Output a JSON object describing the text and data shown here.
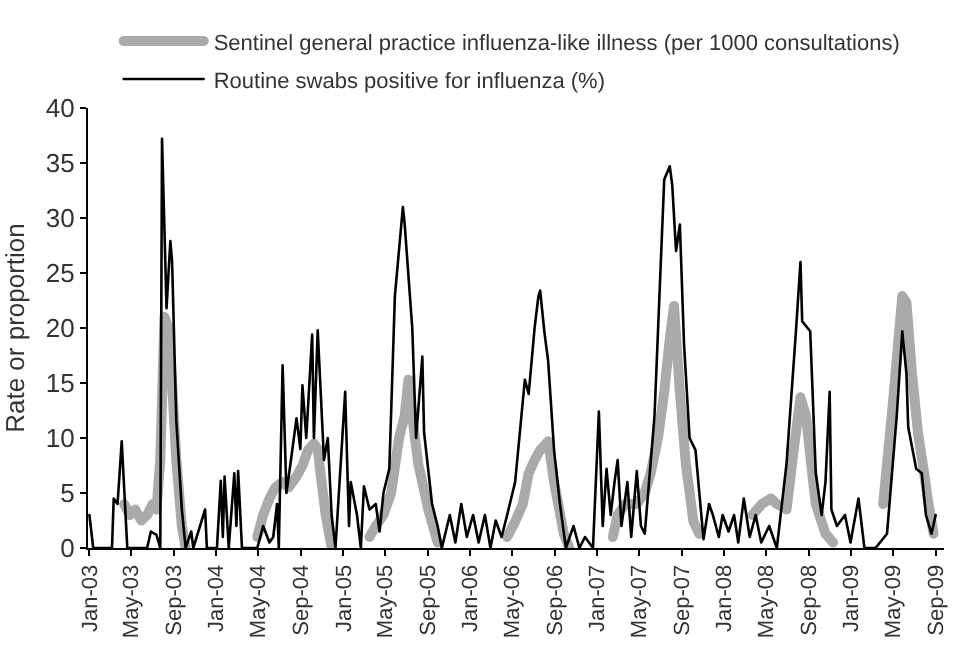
{
  "chart_data": {
    "type": "line",
    "ylabel": "Rate or proportion",
    "legend": "top left",
    "grid": false,
    "marker": "none",
    "line_style": "solid",
    "xlim": [
      "2002-12-28",
      "2009-09-25"
    ],
    "xticks": [
      {
        "value": "2003-01-01",
        "label": "Jan-03"
      },
      {
        "value": "2003-05-01",
        "label": "May-03"
      },
      {
        "value": "2003-09-01",
        "label": "Sep-03"
      },
      {
        "value": "2004-01-01",
        "label": "Jan-04"
      },
      {
        "value": "2004-05-01",
        "label": "May-04"
      },
      {
        "value": "2004-09-01",
        "label": "Sep-04"
      },
      {
        "value": "2005-01-01",
        "label": "Jan-05"
      },
      {
        "value": "2005-05-01",
        "label": "May-05"
      },
      {
        "value": "2005-09-01",
        "label": "Sep-05"
      },
      {
        "value": "2006-01-01",
        "label": "Jan-06"
      },
      {
        "value": "2006-05-01",
        "label": "May-06"
      },
      {
        "value": "2006-09-01",
        "label": "Sep-06"
      },
      {
        "value": "2007-01-01",
        "label": "Jan-07"
      },
      {
        "value": "2007-05-01",
        "label": "May-07"
      },
      {
        "value": "2007-09-01",
        "label": "Sep-07"
      },
      {
        "value": "2008-01-01",
        "label": "Jan-08"
      },
      {
        "value": "2008-05-01",
        "label": "May-08"
      },
      {
        "value": "2008-09-01",
        "label": "Sep-08"
      },
      {
        "value": "2009-01-01",
        "label": "Jan-09"
      },
      {
        "value": "2009-05-01",
        "label": "May-09"
      },
      {
        "value": "2009-09-01",
        "label": "Sep-09"
      }
    ],
    "ylim": [
      0,
      40
    ],
    "yticks": [
      0,
      5,
      10,
      15,
      20,
      25,
      30,
      35,
      40
    ],
    "series": [
      {
        "name": "Sentinel general practice influenza-like illness (per 1000 consultations)",
        "color": "#aaaaaa",
        "x": [
          "2003-04-11",
          "2003-04-27",
          "2003-05-13",
          "2003-05-30",
          "2003-06-16",
          "2003-07-02",
          "2003-07-13",
          "2003-07-24",
          "2003-08-05",
          "2003-08-16",
          "2003-08-27",
          "2003-09-08",
          "2003-09-24",
          "2003-10-05",
          "2004-01-01",
          "2004-04-28",
          "2004-05-15",
          "2004-06-02",
          "2004-06-19",
          "2004-07-10",
          "2004-07-27",
          "2004-08-19",
          "2004-09-05",
          "2004-09-21",
          "2004-10-08",
          "2004-10-19",
          "2004-10-30",
          "2004-11-11",
          "2004-11-28",
          "2005-01-01",
          "2005-03-17",
          "2005-04-04",
          "2005-04-26",
          "2005-05-18",
          "2005-06-10",
          "2005-06-26",
          "2005-07-07",
          "2005-07-18",
          "2005-08-04",
          "2005-09-02",
          "2005-09-29",
          "2006-01-01",
          "2006-04-17",
          "2006-05-10",
          "2006-06-01",
          "2006-06-18",
          "2006-07-05",
          "2006-07-21",
          "2006-08-13",
          "2006-08-30",
          "2006-09-27",
          "2006-10-13",
          "2007-01-01",
          "2007-02-15",
          "2007-03-01",
          "2007-03-23",
          "2007-04-09",
          "2007-04-25",
          "2007-05-18",
          "2007-06-04",
          "2007-06-25",
          "2007-07-13",
          "2007-07-29",
          "2007-08-10",
          "2007-08-27",
          "2007-09-13",
          "2007-10-05",
          "2007-10-22",
          "2008-01-01",
          "2008-03-23",
          "2008-04-19",
          "2008-05-15",
          "2008-06-01",
          "2008-06-29",
          "2008-07-20",
          "2008-08-08",
          "2008-08-24",
          "2008-09-10",
          "2008-09-21",
          "2008-10-19",
          "2008-11-10",
          "2009-01-01",
          "2009-04-03",
          "2009-05-01",
          "2009-05-28",
          "2009-06-09",
          "2009-06-25",
          "2009-07-12",
          "2009-07-29",
          "2009-08-09",
          "2009-08-26"
        ],
        "values": [
          4,
          3,
          3.5,
          2.5,
          3,
          4,
          3.5,
          8,
          21,
          20,
          15,
          8,
          2,
          0,
          null,
          1,
          3,
          4.5,
          5.5,
          6,
          5.5,
          6.5,
          7.5,
          8.9,
          9.5,
          9,
          6,
          3,
          0,
          null,
          1,
          2,
          3,
          5,
          10,
          12,
          15.3,
          12,
          7.7,
          3.5,
          0.5,
          null,
          1,
          2.4,
          4,
          6.8,
          8,
          8.9,
          9.7,
          6,
          1.3,
          0,
          null,
          1,
          3,
          4,
          4,
          4,
          5,
          6.8,
          10,
          14.2,
          19,
          22,
          14.2,
          7.7,
          2.4,
          1.3,
          null,
          3,
          4,
          4.5,
          4,
          3.5,
          9,
          13.7,
          12,
          7,
          4,
          1.3,
          0.5,
          null,
          4,
          13.2,
          22.9,
          22.3,
          15.8,
          10.5,
          7,
          4.5,
          1.3
        ]
      },
      {
        "name": "Routine swabs positive for influenza (%)",
        "color": "#000000",
        "x": [
          "2003-01-01",
          "2003-01-12",
          "2003-03-07",
          "2003-03-12",
          "2003-03-23",
          "2003-04-04",
          "2003-04-20",
          "2003-06-16",
          "2003-06-27",
          "2003-07-13",
          "2003-07-24",
          "2003-07-29",
          "2003-08-11",
          "2003-08-22",
          "2003-08-27",
          "2003-09-08",
          "2003-09-24",
          "2003-10-05",
          "2003-10-21",
          "2003-10-27",
          "2003-11-30",
          "2003-12-05",
          "2004-01-03",
          "2004-01-14",
          "2004-01-20",
          "2004-01-25",
          "2004-02-06",
          "2004-02-22",
          "2004-02-28",
          "2004-03-04",
          "2004-03-15",
          "2004-04-28",
          "2004-05-15",
          "2004-06-02",
          "2004-06-13",
          "2004-06-24",
          "2004-06-29",
          "2004-07-10",
          "2004-07-21",
          "2004-08-03",
          "2004-08-19",
          "2004-08-30",
          "2004-09-05",
          "2004-09-16",
          "2004-10-03",
          "2004-10-08",
          "2004-10-19",
          "2004-11-06",
          "2004-11-17",
          "2004-11-28",
          "2004-12-09",
          "2005-01-06",
          "2005-01-17",
          "2005-01-22",
          "2005-02-09",
          "2005-02-20",
          "2005-03-01",
          "2005-03-17",
          "2005-04-04",
          "2005-04-15",
          "2005-04-26",
          "2005-05-13",
          "2005-05-29",
          "2005-06-21",
          "2005-06-26",
          "2005-07-18",
          "2005-07-29",
          "2005-08-16",
          "2005-08-21",
          "2005-09-13",
          "2005-09-29",
          "2005-10-11",
          "2005-11-03",
          "2005-11-19",
          "2005-12-06",
          "2005-12-22",
          "2006-01-09",
          "2006-01-25",
          "2006-02-12",
          "2006-02-28",
          "2006-03-15",
          "2006-04-01",
          "2006-04-17",
          "2006-05-10",
          "2006-06-07",
          "2006-06-18",
          "2006-07-05",
          "2006-07-16",
          "2006-07-21",
          "2006-08-02",
          "2006-08-13",
          "2006-08-30",
          "2006-09-16",
          "2006-10-03",
          "2006-10-25",
          "2006-11-11",
          "2006-11-27",
          "2006-12-20",
          "2007-01-06",
          "2007-01-17",
          "2007-01-28",
          "2007-02-09",
          "2007-02-20",
          "2007-03-01",
          "2007-03-12",
          "2007-03-29",
          "2007-04-09",
          "2007-04-25",
          "2007-05-07",
          "2007-05-18",
          "2007-06-15",
          "2007-07-13",
          "2007-07-29",
          "2007-08-05",
          "2007-08-16",
          "2007-08-27",
          "2007-09-08",
          "2007-09-24",
          "2007-10-11",
          "2007-11-03",
          "2007-11-19",
          "2007-11-30",
          "2007-12-17",
          "2007-12-28",
          "2008-01-14",
          "2008-01-30",
          "2008-02-11",
          "2008-02-27",
          "2008-03-15",
          "2008-04-01",
          "2008-04-17",
          "2008-05-10",
          "2008-06-01",
          "2008-06-29",
          "2008-07-26",
          "2008-08-08",
          "2008-08-13",
          "2008-09-05",
          "2008-09-21",
          "2008-10-08",
          "2008-10-19",
          "2008-10-31",
          "2008-11-05",
          "2008-11-21",
          "2008-12-14",
          "2008-12-30",
          "2009-01-22",
          "2009-02-08",
          "2009-03-12",
          "2009-04-14",
          "2009-05-12",
          "2009-05-28",
          "2009-06-09",
          "2009-06-14",
          "2009-07-07",
          "2009-07-23",
          "2009-08-04",
          "2009-08-20",
          "2009-09-01"
        ],
        "values": [
          3,
          0,
          0,
          4.5,
          4,
          9.7,
          0,
          0,
          1.5,
          1.2,
          0,
          37.2,
          21.8,
          27.9,
          26,
          11.6,
          3.5,
          0,
          1.5,
          0,
          3.5,
          0,
          0,
          6.1,
          1,
          6.5,
          0,
          6.8,
          2,
          7,
          0,
          0,
          2,
          0.5,
          1,
          4,
          0,
          16.6,
          5,
          8,
          11.8,
          9,
          14.8,
          10,
          19.4,
          10,
          19.8,
          8,
          10,
          3,
          0,
          14.2,
          2,
          6,
          3,
          0,
          5.6,
          3.5,
          4,
          1.5,
          5,
          7.2,
          22.9,
          31,
          29.5,
          20,
          10,
          17.4,
          10.5,
          4,
          2,
          0,
          3,
          0.5,
          4,
          1,
          3,
          0.5,
          3,
          0,
          2.5,
          1,
          3,
          6,
          15.3,
          14,
          20,
          22.9,
          23.4,
          19.7,
          17,
          8.9,
          4,
          0,
          2,
          0,
          1,
          0,
          12.4,
          2,
          7.2,
          3,
          6,
          8,
          2,
          6,
          1,
          7,
          2,
          1.3,
          12,
          33.5,
          34.7,
          33,
          27,
          29.4,
          18.5,
          10,
          8.9,
          0.8,
          4,
          3,
          1,
          3,
          1.5,
          3,
          0.5,
          4.5,
          1,
          3,
          0.5,
          2,
          0,
          7.7,
          19.7,
          26,
          20.6,
          19.7,
          6.8,
          3,
          6,
          14.2,
          3.5,
          2,
          3,
          0.5,
          4.5,
          0,
          0,
          1.3,
          12,
          19.7,
          15.8,
          11,
          7.2,
          6.8,
          3,
          1.3,
          3
        ]
      }
    ]
  }
}
